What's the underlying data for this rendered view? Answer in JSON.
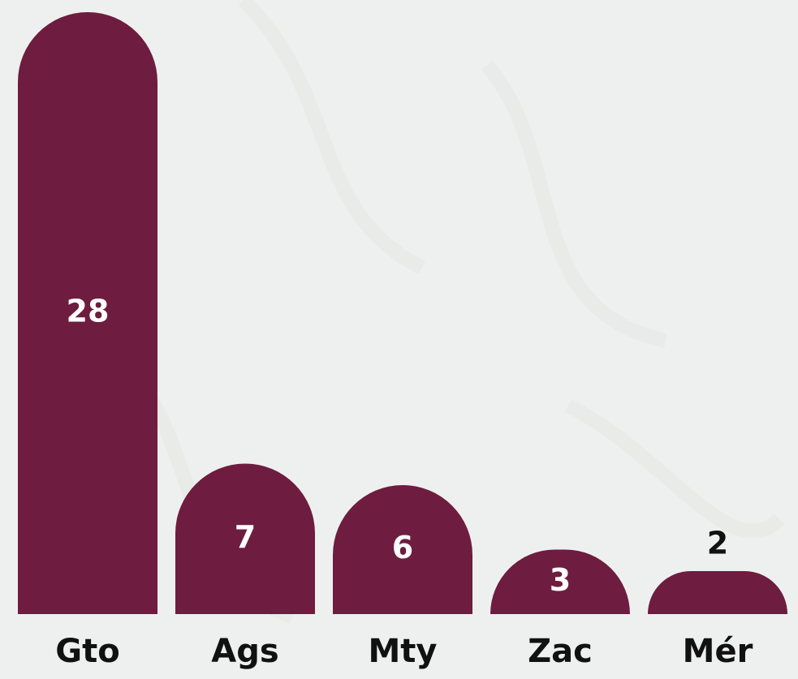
{
  "chart_data": {
    "type": "bar",
    "categories": [
      "Gto",
      "Ags",
      "Mty",
      "Zac",
      "Mér"
    ],
    "values": [
      28,
      7,
      6,
      3,
      2
    ],
    "color": "#6e1c3f"
  }
}
